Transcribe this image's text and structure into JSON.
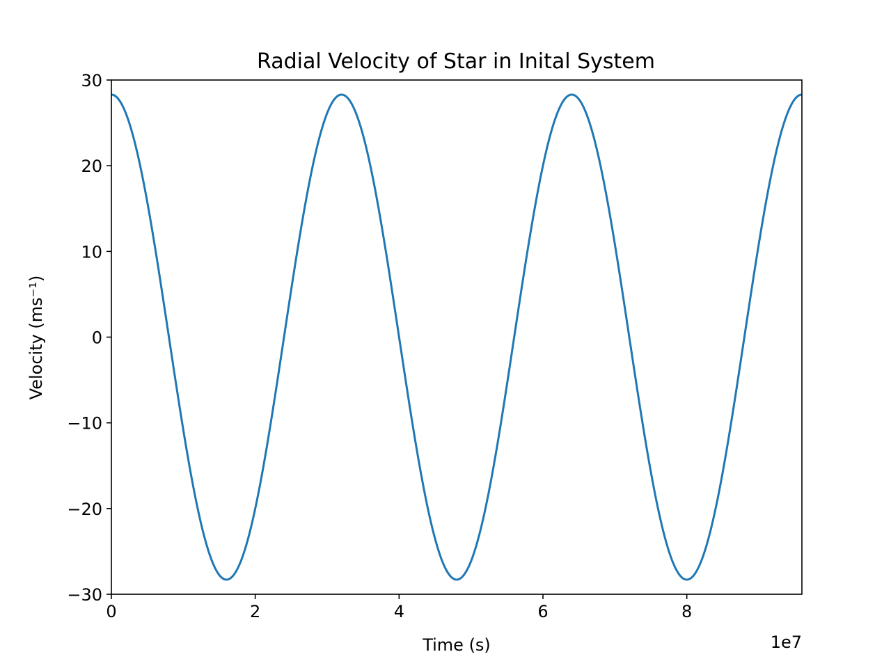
{
  "chart_data": {
    "type": "line",
    "title": "Radial Velocity of Star in Inital System",
    "xlabel": "Time (s)",
    "ylabel": "Velocity (ms⁻¹)",
    "x_offset_text": "1e7",
    "xlim": [
      0,
      9.6
    ],
    "ylim": [
      -30,
      30
    ],
    "x_scale_factor": 10000000,
    "xticks": [
      0,
      2,
      4,
      6,
      8
    ],
    "xtick_labels": [
      "0",
      "2",
      "4",
      "6",
      "8"
    ],
    "yticks": [
      30,
      20,
      10,
      0,
      -10,
      -20,
      -30
    ],
    "ytick_labels": [
      "30",
      "20",
      "10",
      "0",
      "−10",
      "−20",
      "−30"
    ],
    "grid": false,
    "series": [
      {
        "color": "#1f77b4",
        "amplitude": 28.3,
        "period": 3.2,
        "phase": 0,
        "x": [
          0,
          0.4,
          0.8,
          1.2,
          1.6,
          2.0,
          2.4,
          2.8,
          3.2,
          3.6,
          4.0,
          4.4,
          4.8,
          5.2,
          5.6,
          6.0,
          6.4,
          6.8,
          7.2,
          7.6,
          8.0,
          8.4,
          8.8,
          9.2,
          9.6
        ],
        "y": [
          28.3,
          20.0,
          0.0,
          -20.0,
          -28.3,
          -20.0,
          0.0,
          20.0,
          28.3,
          20.0,
          0.0,
          -20.0,
          -28.3,
          -20.0,
          0.0,
          20.0,
          28.3,
          20.0,
          0.0,
          -20.0,
          -28.3,
          -20.0,
          0.0,
          20.0,
          28.3
        ]
      }
    ]
  }
}
